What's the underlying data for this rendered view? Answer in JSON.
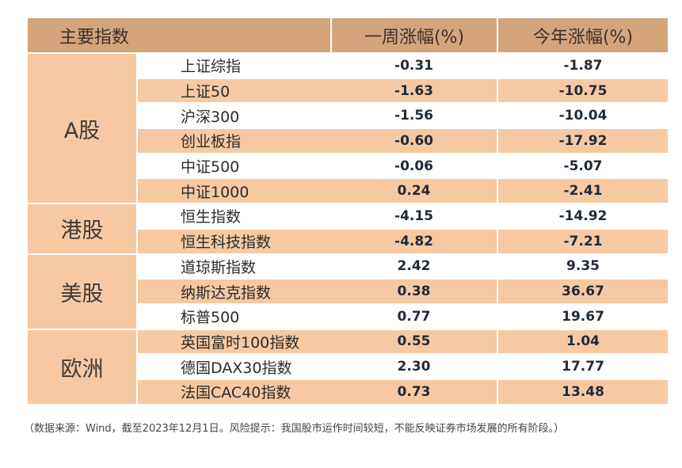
{
  "table": {
    "headers": {
      "index": "主要指数",
      "week": "一周涨幅(%)",
      "ytd": "今年涨幅(%)"
    },
    "groups": [
      {
        "region": "A股",
        "rows": [
          {
            "name": "上证综指",
            "week": "-0.31",
            "ytd": "-1.87"
          },
          {
            "name": "上证50",
            "week": "-1.63",
            "ytd": "-10.75"
          },
          {
            "name": "沪深300",
            "week": "-1.56",
            "ytd": "-10.04"
          },
          {
            "name": "创业板指",
            "week": "-0.60",
            "ytd": "-17.92"
          },
          {
            "name": "中证500",
            "week": "-0.06",
            "ytd": "-5.07"
          },
          {
            "name": "中证1000",
            "week": "0.24",
            "ytd": "-2.41"
          }
        ]
      },
      {
        "region": "港股",
        "rows": [
          {
            "name": "恒生指数",
            "week": "-4.15",
            "ytd": "-14.92"
          },
          {
            "name": "恒生科技指数",
            "week": "-4.82",
            "ytd": "-7.21"
          }
        ]
      },
      {
        "region": "美股",
        "rows": [
          {
            "name": "道琼斯指数",
            "week": "2.42",
            "ytd": "9.35"
          },
          {
            "name": "纳斯达克指数",
            "week": "0.38",
            "ytd": "36.67"
          },
          {
            "name": "标普500",
            "week": "0.77",
            "ytd": "19.67"
          }
        ]
      },
      {
        "region": "欧洲",
        "rows": [
          {
            "name": "英国富时100指数",
            "week": "0.55",
            "ytd": "1.04"
          },
          {
            "name": "德国DAX30指数",
            "week": "2.30",
            "ytd": "17.77"
          },
          {
            "name": "法国CAC40指数",
            "week": "0.73",
            "ytd": "13.48"
          }
        ]
      }
    ]
  },
  "note": "（数据来源：Wind，截至2023年12月1日。风险提示：我国股市运作时间较短，不能反映证券市场发展的所有阶段。）"
}
